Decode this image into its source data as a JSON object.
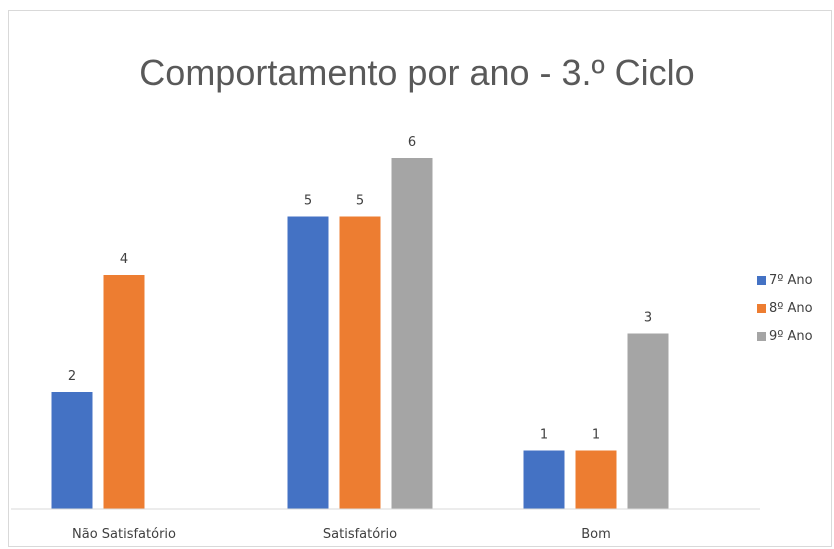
{
  "chart_data": {
    "type": "bar",
    "title": "Comportamento por ano - 3.º Ciclo",
    "categories": [
      "Não Satisfatório",
      "Satisfatório",
      "Bom"
    ],
    "series": [
      {
        "name": "7º Ano",
        "color": "#4472C4",
        "values": [
          2,
          5,
          1
        ]
      },
      {
        "name": "8º Ano",
        "color": "#ED7D31",
        "values": [
          4,
          5,
          1
        ]
      },
      {
        "name": "9º Ano",
        "color": "#A5A5A5",
        "values": [
          null,
          6,
          3
        ]
      }
    ],
    "ylim": [
      0,
      7
    ],
    "grid": false,
    "legend_position": "right",
    "data_labels": true
  }
}
